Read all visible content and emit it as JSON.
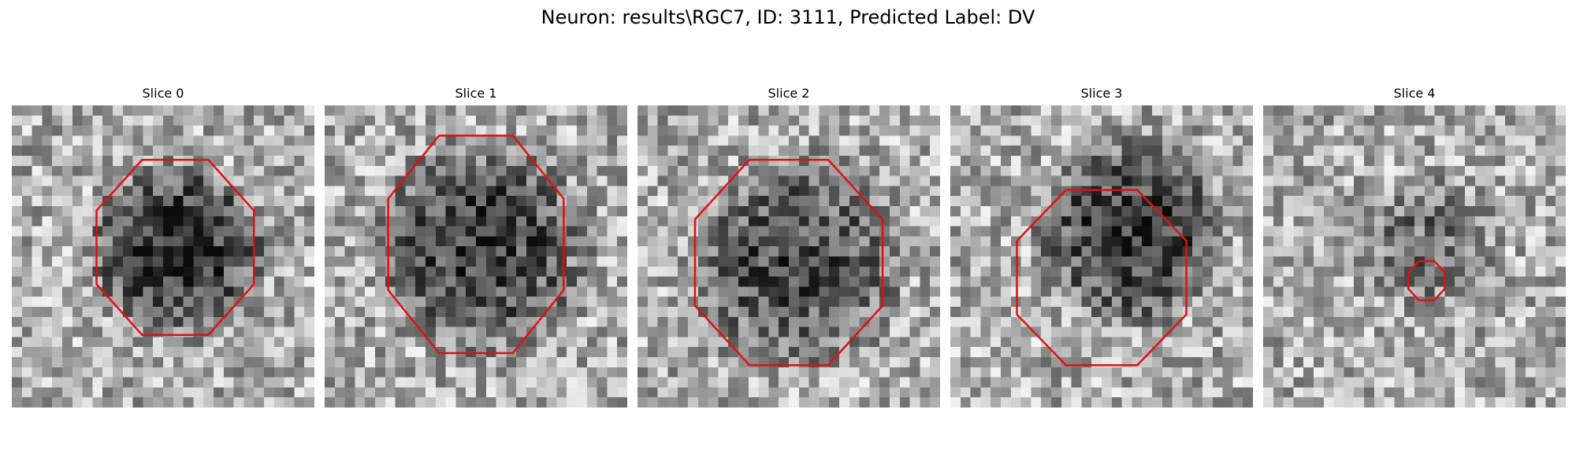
{
  "figure": {
    "title": "Neuron: results\\RGC7, ID: 3111, Predicted Label: DV"
  },
  "colors": {
    "contour": "#e01010",
    "background": "#ffffff"
  },
  "panels": [
    {
      "title": "Slice 0",
      "mask": {
        "center": [
          0.54,
          0.47
        ],
        "radii": [
          0.26,
          0.29
        ],
        "shape": "octagon"
      },
      "image": {
        "seed": 11,
        "dark_center": [
          0.55,
          0.48
        ],
        "dark_radius": 0.33,
        "darkness": 0.55
      }
    },
    {
      "title": "Slice 1",
      "mask": {
        "center": [
          0.5,
          0.46
        ],
        "radii": [
          0.29,
          0.36
        ],
        "shape": "octagon"
      },
      "image": {
        "seed": 23,
        "dark_center": [
          0.52,
          0.47
        ],
        "dark_radius": 0.4,
        "darkness": 0.45
      }
    },
    {
      "title": "Slice 2",
      "mask": {
        "center": [
          0.5,
          0.52
        ],
        "radii": [
          0.31,
          0.34
        ],
        "shape": "octagon"
      },
      "image": {
        "seed": 37,
        "dark_center": [
          0.52,
          0.52
        ],
        "dark_radius": 0.4,
        "darkness": 0.4
      }
    },
    {
      "title": "Slice 3",
      "mask": {
        "center": [
          0.5,
          0.57
        ],
        "radii": [
          0.28,
          0.29
        ],
        "shape": "octagon"
      },
      "image": {
        "seed": 41,
        "dark_center": [
          0.6,
          0.42
        ],
        "dark_radius": 0.35,
        "darkness": 0.5
      }
    },
    {
      "title": "Slice 4",
      "mask": {
        "center": [
          0.54,
          0.58
        ],
        "radii": [
          0.06,
          0.065
        ],
        "shape": "octagon"
      },
      "image": {
        "seed": 53,
        "dark_center": [
          0.55,
          0.45
        ],
        "dark_radius": 0.25,
        "darkness": 0.25
      }
    }
  ]
}
